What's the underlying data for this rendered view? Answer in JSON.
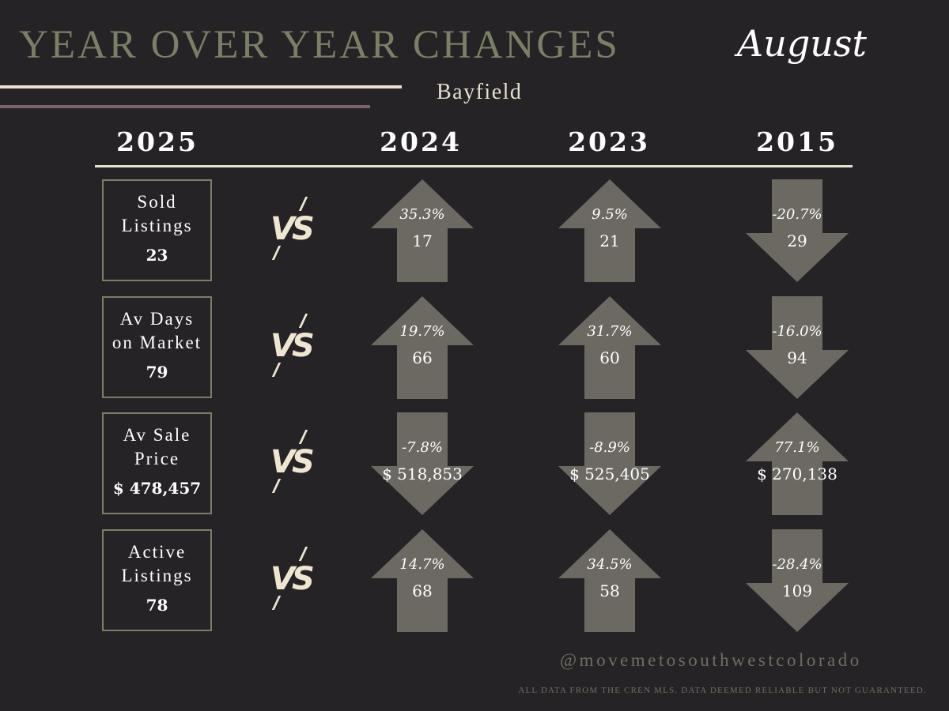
{
  "header": {
    "title": "YEAR OVER YEAR CHANGES",
    "month": "August",
    "location": "Bayfield"
  },
  "years": {
    "current": "2025",
    "compare": [
      "2024",
      "2023",
      "2015"
    ]
  },
  "colors": {
    "background": "#252326",
    "title_olive": "#7b7f65",
    "cream": "#e7dfcf",
    "mauve": "#7e6068",
    "arrow_gray": "#6c6862"
  },
  "vs_label": "VS",
  "rows": [
    {
      "label": "Sold\nListings",
      "value": "23",
      "comparisons": [
        {
          "direction": "up",
          "pct": "35.3%",
          "value": "17"
        },
        {
          "direction": "up",
          "pct": "9.5%",
          "value": "21"
        },
        {
          "direction": "down",
          "pct": "-20.7%",
          "value": "29"
        }
      ]
    },
    {
      "label": "Av Days\non Market",
      "value": "79",
      "comparisons": [
        {
          "direction": "up",
          "pct": "19.7%",
          "value": "66"
        },
        {
          "direction": "up",
          "pct": "31.7%",
          "value": "60"
        },
        {
          "direction": "down",
          "pct": "-16.0%",
          "value": "94"
        }
      ]
    },
    {
      "label": "Av Sale\nPrice",
      "value": "$ 478,457",
      "comparisons": [
        {
          "direction": "down",
          "pct": "-7.8%",
          "value": "$ 518,853"
        },
        {
          "direction": "down",
          "pct": "-8.9%",
          "value": "$ 525,405"
        },
        {
          "direction": "up",
          "pct": "77.1%",
          "value": "$ 270,138"
        }
      ]
    },
    {
      "label": "Active\nListings",
      "value": "78",
      "comparisons": [
        {
          "direction": "up",
          "pct": "14.7%",
          "value": "68"
        },
        {
          "direction": "up",
          "pct": "34.5%",
          "value": "58"
        },
        {
          "direction": "down",
          "pct": "-28.4%",
          "value": "109"
        }
      ]
    }
  ],
  "footer": {
    "handle": "@movemetosouthwestcolorado",
    "disclaimer": "ALL DATA FROM THE CREN MLS. DATA DEEMED RELIABLE BUT NOT GUARANTEED."
  }
}
